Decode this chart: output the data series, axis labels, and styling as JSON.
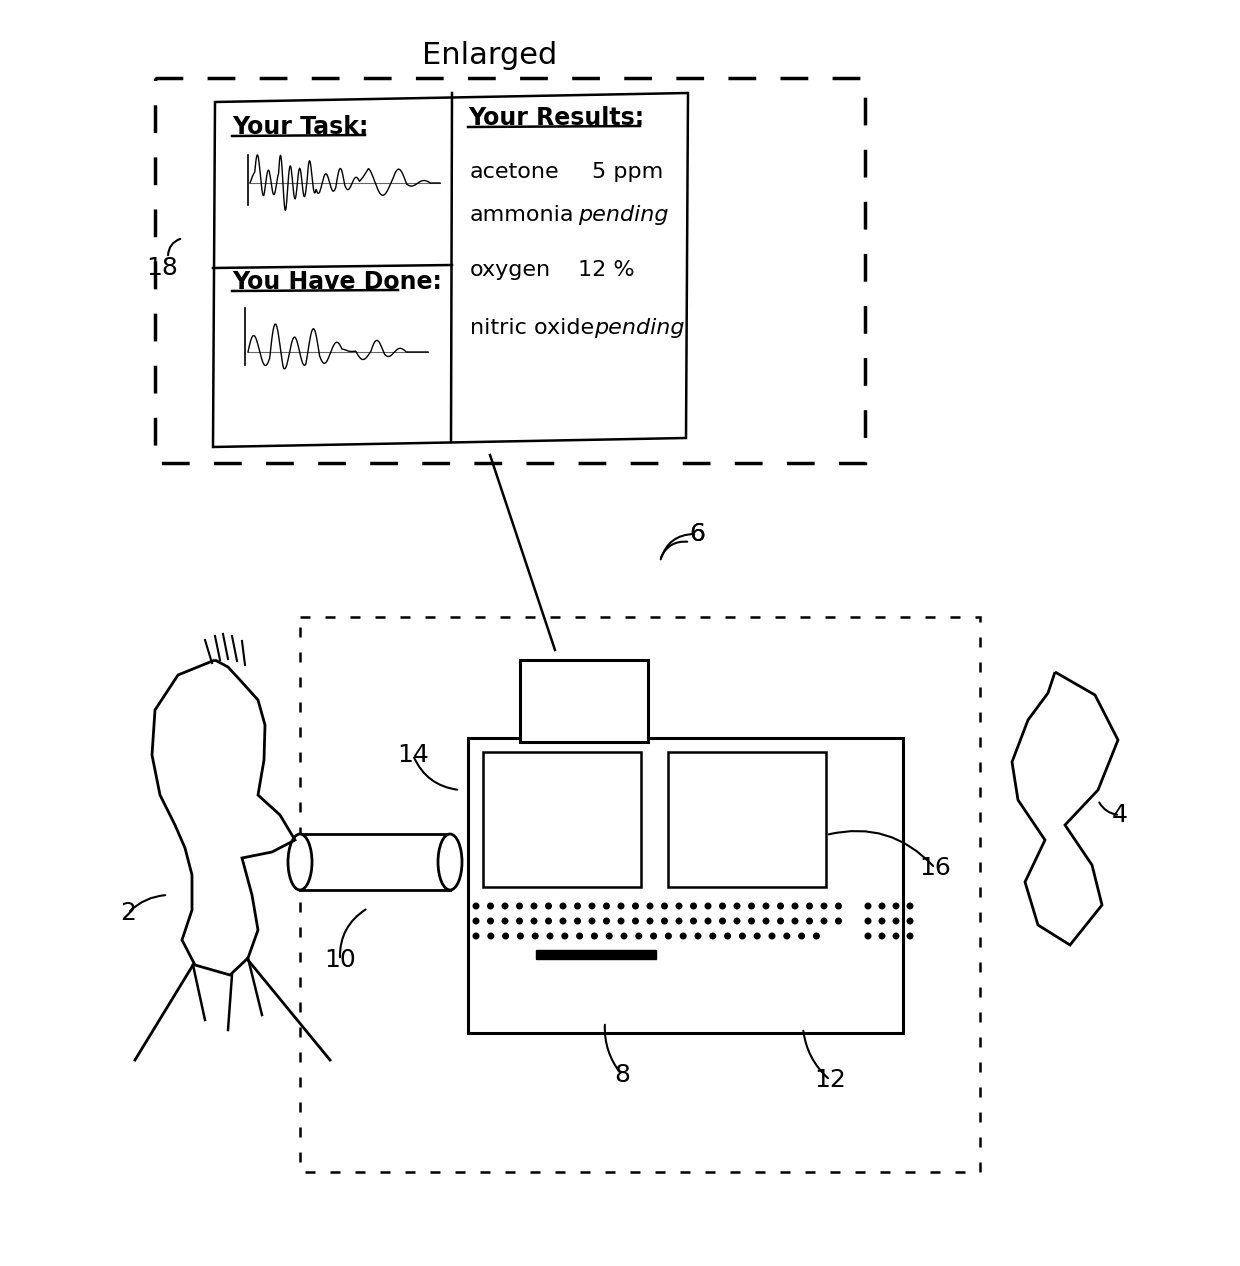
{
  "title": "Enlarged",
  "bg_color": "#ffffff",
  "line_color": "#000000",
  "label_18": "18",
  "label_6": "6",
  "label_14": "14",
  "label_4": "4",
  "label_2": "2",
  "label_10": "10",
  "label_8": "8",
  "label_12": "12",
  "label_16": "16",
  "screen_title_task": "Your Task:",
  "screen_title_results": "Your Results:",
  "screen_title_done": "You Have Done:",
  "results_row1_label": "acetone",
  "results_row1_value": "5 ppm",
  "results_row2_label": "ammonia",
  "results_row2_value": "pending",
  "results_row3_label": "oxygen",
  "results_row3_value": "12 %",
  "results_row4_label": "nitric oxide",
  "results_row4_value": "pending"
}
